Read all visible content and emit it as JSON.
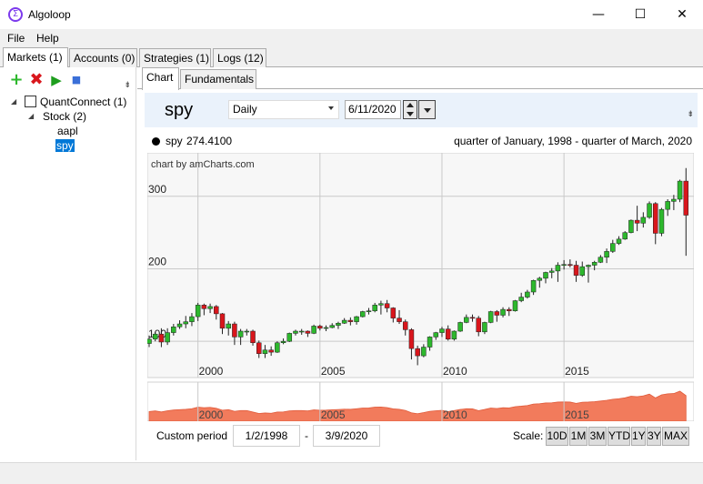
{
  "window": {
    "title": "Algoloop",
    "icon": "algoloop-sigma-icon",
    "controls": {
      "minimize": "—",
      "maximize": "☐",
      "close": "✕"
    }
  },
  "menu": {
    "items": [
      "File",
      "Help"
    ]
  },
  "main_tabs": [
    {
      "label": "Markets (1)",
      "active": true
    },
    {
      "label": "Accounts (0)"
    },
    {
      "label": "Strategies (1)"
    },
    {
      "label": "Logs (12)"
    }
  ],
  "toolbar": {
    "add": "+",
    "delete": "✖",
    "run": "▶",
    "stop": "■",
    "grip": "⇟"
  },
  "tree": {
    "root": {
      "label": "QuantConnect (1)",
      "arrow": "◢"
    },
    "group": {
      "label": "Stock (2)",
      "arrow": "◢"
    },
    "leaves": [
      "aapl",
      "spy"
    ],
    "selected": "spy"
  },
  "sub_tabs": [
    {
      "label": "Chart",
      "active": true
    },
    {
      "label": "Fundamentals"
    }
  ],
  "header": {
    "symbol": "spy",
    "resolution": "Daily",
    "date": "6/11/2020",
    "grip": "⇟"
  },
  "legend": {
    "series": "spy",
    "value": "274.4100",
    "range": "quarter of January, 1998 - quarter of March, 2020"
  },
  "chart_data": {
    "type": "candlestick",
    "watermark": "chart by amCharts.com",
    "x_ticks": [
      "2000",
      "2005",
      "2010",
      "2015"
    ],
    "y_ticks": [
      "100",
      "200",
      "300"
    ],
    "ylim": [
      50,
      360
    ],
    "xlim": [
      1998.0,
      2020.25
    ],
    "candles": [
      {
        "t": 1998.0,
        "o": 97,
        "c": 103,
        "h": 108,
        "l": 92
      },
      {
        "t": 1998.25,
        "o": 103,
        "c": 110,
        "h": 113,
        "l": 100
      },
      {
        "t": 1998.5,
        "o": 110,
        "c": 99,
        "h": 118,
        "l": 92
      },
      {
        "t": 1998.75,
        "o": 99,
        "c": 112,
        "h": 118,
        "l": 95
      },
      {
        "t": 1999.0,
        "o": 112,
        "c": 120,
        "h": 124,
        "l": 108
      },
      {
        "t": 1999.25,
        "o": 120,
        "c": 124,
        "h": 129,
        "l": 117
      },
      {
        "t": 1999.5,
        "o": 124,
        "c": 127,
        "h": 135,
        "l": 118
      },
      {
        "t": 1999.75,
        "o": 127,
        "c": 134,
        "h": 139,
        "l": 121
      },
      {
        "t": 2000.0,
        "o": 134,
        "c": 150,
        "h": 153,
        "l": 128
      },
      {
        "t": 2000.25,
        "o": 150,
        "c": 145,
        "h": 152,
        "l": 136
      },
      {
        "t": 2000.5,
        "o": 145,
        "c": 148,
        "h": 152,
        "l": 139
      },
      {
        "t": 2000.75,
        "o": 148,
        "c": 138,
        "h": 150,
        "l": 130
      },
      {
        "t": 2001.0,
        "o": 138,
        "c": 118,
        "h": 139,
        "l": 110
      },
      {
        "t": 2001.25,
        "o": 118,
        "c": 124,
        "h": 128,
        "l": 108
      },
      {
        "t": 2001.5,
        "o": 124,
        "c": 106,
        "h": 127,
        "l": 95
      },
      {
        "t": 2001.75,
        "o": 106,
        "c": 114,
        "h": 117,
        "l": 95
      },
      {
        "t": 2002.0,
        "o": 114,
        "c": 114,
        "h": 117,
        "l": 108
      },
      {
        "t": 2002.25,
        "o": 114,
        "c": 98,
        "h": 116,
        "l": 94
      },
      {
        "t": 2002.5,
        "o": 98,
        "c": 83,
        "h": 101,
        "l": 77
      },
      {
        "t": 2002.75,
        "o": 83,
        "c": 88,
        "h": 95,
        "l": 77
      },
      {
        "t": 2003.0,
        "o": 88,
        "c": 85,
        "h": 93,
        "l": 80
      },
      {
        "t": 2003.25,
        "o": 85,
        "c": 98,
        "h": 100,
        "l": 84
      },
      {
        "t": 2003.5,
        "o": 98,
        "c": 100,
        "h": 104,
        "l": 96
      },
      {
        "t": 2003.75,
        "o": 100,
        "c": 111,
        "h": 112,
        "l": 99
      },
      {
        "t": 2004.0,
        "o": 111,
        "c": 114,
        "h": 116,
        "l": 108
      },
      {
        "t": 2004.25,
        "o": 114,
        "c": 114,
        "h": 117,
        "l": 109
      },
      {
        "t": 2004.5,
        "o": 114,
        "c": 111,
        "h": 115,
        "l": 106
      },
      {
        "t": 2004.75,
        "o": 111,
        "c": 121,
        "h": 123,
        "l": 110
      },
      {
        "t": 2005.0,
        "o": 121,
        "c": 118,
        "h": 123,
        "l": 115
      },
      {
        "t": 2005.25,
        "o": 118,
        "c": 119,
        "h": 122,
        "l": 114
      },
      {
        "t": 2005.5,
        "o": 119,
        "c": 122,
        "h": 125,
        "l": 118
      },
      {
        "t": 2005.75,
        "o": 122,
        "c": 125,
        "h": 127,
        "l": 117
      },
      {
        "t": 2006.0,
        "o": 125,
        "c": 129,
        "h": 132,
        "l": 124
      },
      {
        "t": 2006.25,
        "o": 129,
        "c": 127,
        "h": 133,
        "l": 122
      },
      {
        "t": 2006.5,
        "o": 127,
        "c": 134,
        "h": 135,
        "l": 123
      },
      {
        "t": 2006.75,
        "o": 134,
        "c": 141,
        "h": 142,
        "l": 133
      },
      {
        "t": 2007.0,
        "o": 141,
        "c": 142,
        "h": 146,
        "l": 137
      },
      {
        "t": 2007.25,
        "o": 142,
        "c": 150,
        "h": 153,
        "l": 140
      },
      {
        "t": 2007.5,
        "o": 150,
        "c": 152,
        "h": 156,
        "l": 137
      },
      {
        "t": 2007.75,
        "o": 152,
        "c": 146,
        "h": 157,
        "l": 140
      },
      {
        "t": 2008.0,
        "o": 146,
        "c": 132,
        "h": 147,
        "l": 126
      },
      {
        "t": 2008.25,
        "o": 132,
        "c": 127,
        "h": 143,
        "l": 124
      },
      {
        "t": 2008.5,
        "o": 127,
        "c": 116,
        "h": 130,
        "l": 108
      },
      {
        "t": 2008.75,
        "o": 116,
        "c": 90,
        "h": 118,
        "l": 75
      },
      {
        "t": 2009.0,
        "o": 90,
        "c": 80,
        "h": 94,
        "l": 67
      },
      {
        "t": 2009.25,
        "o": 80,
        "c": 92,
        "h": 96,
        "l": 78
      },
      {
        "t": 2009.5,
        "o": 92,
        "c": 106,
        "h": 107,
        "l": 87
      },
      {
        "t": 2009.75,
        "o": 106,
        "c": 112,
        "h": 113,
        "l": 102
      },
      {
        "t": 2010.0,
        "o": 112,
        "c": 117,
        "h": 120,
        "l": 106
      },
      {
        "t": 2010.25,
        "o": 117,
        "c": 103,
        "h": 122,
        "l": 101
      },
      {
        "t": 2010.5,
        "o": 103,
        "c": 114,
        "h": 115,
        "l": 101
      },
      {
        "t": 2010.75,
        "o": 114,
        "c": 126,
        "h": 127,
        "l": 113
      },
      {
        "t": 2011.0,
        "o": 126,
        "c": 133,
        "h": 137,
        "l": 125
      },
      {
        "t": 2011.25,
        "o": 133,
        "c": 132,
        "h": 137,
        "l": 127
      },
      {
        "t": 2011.5,
        "o": 132,
        "c": 113,
        "h": 135,
        "l": 107
      },
      {
        "t": 2011.75,
        "o": 113,
        "c": 126,
        "h": 127,
        "l": 110
      },
      {
        "t": 2012.0,
        "o": 126,
        "c": 141,
        "h": 142,
        "l": 125
      },
      {
        "t": 2012.25,
        "o": 141,
        "c": 136,
        "h": 143,
        "l": 127
      },
      {
        "t": 2012.5,
        "o": 136,
        "c": 144,
        "h": 147,
        "l": 133
      },
      {
        "t": 2012.75,
        "o": 144,
        "c": 142,
        "h": 147,
        "l": 135
      },
      {
        "t": 2013.0,
        "o": 142,
        "c": 156,
        "h": 157,
        "l": 141
      },
      {
        "t": 2013.25,
        "o": 156,
        "c": 161,
        "h": 167,
        "l": 154
      },
      {
        "t": 2013.5,
        "o": 161,
        "c": 168,
        "h": 171,
        "l": 159
      },
      {
        "t": 2013.75,
        "o": 168,
        "c": 184,
        "h": 185,
        "l": 164
      },
      {
        "t": 2014.0,
        "o": 184,
        "c": 187,
        "h": 189,
        "l": 174
      },
      {
        "t": 2014.25,
        "o": 187,
        "c": 195,
        "h": 196,
        "l": 180
      },
      {
        "t": 2014.5,
        "o": 195,
        "c": 197,
        "h": 201,
        "l": 187
      },
      {
        "t": 2014.75,
        "o": 197,
        "c": 205,
        "h": 209,
        "l": 182
      },
      {
        "t": 2015.0,
        "o": 205,
        "c": 206,
        "h": 212,
        "l": 199
      },
      {
        "t": 2015.25,
        "o": 206,
        "c": 205,
        "h": 213,
        "l": 202
      },
      {
        "t": 2015.5,
        "o": 205,
        "c": 191,
        "h": 211,
        "l": 182
      },
      {
        "t": 2015.75,
        "o": 191,
        "c": 203,
        "h": 210,
        "l": 189
      },
      {
        "t": 2016.0,
        "o": 203,
        "c": 205,
        "h": 206,
        "l": 181
      },
      {
        "t": 2016.25,
        "o": 205,
        "c": 209,
        "h": 211,
        "l": 198
      },
      {
        "t": 2016.5,
        "o": 209,
        "c": 216,
        "h": 219,
        "l": 208
      },
      {
        "t": 2016.75,
        "o": 216,
        "c": 224,
        "h": 228,
        "l": 208
      },
      {
        "t": 2017.0,
        "o": 224,
        "c": 235,
        "h": 240,
        "l": 222
      },
      {
        "t": 2017.25,
        "o": 235,
        "c": 241,
        "h": 245,
        "l": 233
      },
      {
        "t": 2017.5,
        "o": 241,
        "c": 250,
        "h": 252,
        "l": 240
      },
      {
        "t": 2017.75,
        "o": 250,
        "c": 267,
        "h": 268,
        "l": 249
      },
      {
        "t": 2018.0,
        "o": 267,
        "c": 263,
        "h": 287,
        "l": 252
      },
      {
        "t": 2018.25,
        "o": 263,
        "c": 271,
        "h": 278,
        "l": 257
      },
      {
        "t": 2018.5,
        "o": 271,
        "c": 290,
        "h": 293,
        "l": 269
      },
      {
        "t": 2018.75,
        "o": 290,
        "c": 249,
        "h": 292,
        "l": 234
      },
      {
        "t": 2019.0,
        "o": 249,
        "c": 282,
        "h": 284,
        "l": 245
      },
      {
        "t": 2019.25,
        "o": 282,
        "c": 293,
        "h": 296,
        "l": 273
      },
      {
        "t": 2019.5,
        "o": 293,
        "c": 296,
        "h": 302,
        "l": 281
      },
      {
        "t": 2019.75,
        "o": 296,
        "c": 321,
        "h": 323,
        "l": 292
      },
      {
        "t": 2020.0,
        "o": 321,
        "c": 274,
        "h": 339,
        "l": 218
      }
    ],
    "colors": {
      "up": "#2db82d",
      "down": "#d9161c",
      "grid": "#c9c9c9",
      "plot_bg": "#f7f7f7",
      "navigator_fill": "#f27b5c"
    }
  },
  "bottom": {
    "custom_label": "Custom period",
    "from": "1/2/1998",
    "separator": "-",
    "to": "3/9/2020",
    "scale_label": "Scale:",
    "scale_buttons": [
      "10D",
      "1M",
      "3M",
      "YTD",
      "1Y",
      "3Y",
      "MAX"
    ]
  }
}
